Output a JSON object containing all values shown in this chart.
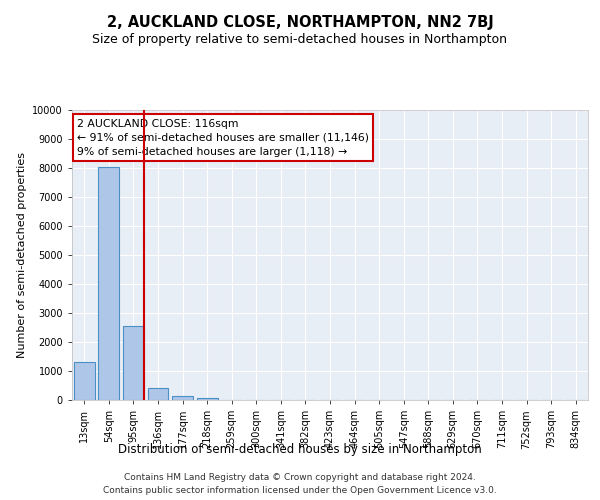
{
  "title": "2, AUCKLAND CLOSE, NORTHAMPTON, NN2 7BJ",
  "subtitle": "Size of property relative to semi-detached houses in Northampton",
  "xlabel_bottom": "Distribution of semi-detached houses by size in Northampton",
  "ylabel": "Number of semi-detached properties",
  "footer_line1": "Contains HM Land Registry data © Crown copyright and database right 2024.",
  "footer_line2": "Contains public sector information licensed under the Open Government Licence v3.0.",
  "categories": [
    "13sqm",
    "54sqm",
    "95sqm",
    "136sqm",
    "177sqm",
    "218sqm",
    "259sqm",
    "300sqm",
    "341sqm",
    "382sqm",
    "423sqm",
    "464sqm",
    "505sqm",
    "547sqm",
    "588sqm",
    "629sqm",
    "670sqm",
    "711sqm",
    "752sqm",
    "793sqm",
    "834sqm"
  ],
  "values": [
    1320,
    8050,
    2550,
    400,
    130,
    80,
    0,
    0,
    0,
    0,
    0,
    0,
    0,
    0,
    0,
    0,
    0,
    0,
    0,
    0,
    0
  ],
  "bar_color": "#aec6e8",
  "bar_edge_color": "#4a90c4",
  "bar_edge_width": 0.8,
  "red_line_x": 2.42,
  "annotation_text_line1": "2 AUCKLAND CLOSE: 116sqm",
  "annotation_text_line2": "← 91% of semi-detached houses are smaller (11,146)",
  "annotation_text_line3": "9% of semi-detached houses are larger (1,118) →",
  "annotation_box_color": "#cc0000",
  "ylim": [
    0,
    10000
  ],
  "yticks": [
    0,
    1000,
    2000,
    3000,
    4000,
    5000,
    6000,
    7000,
    8000,
    9000,
    10000
  ],
  "bg_color": "#e8eef6",
  "grid_color": "#ffffff",
  "title_fontsize": 10.5,
  "subtitle_fontsize": 9,
  "annotation_fontsize": 7.8,
  "ylabel_fontsize": 8,
  "xlabel_fontsize": 8.5,
  "tick_fontsize": 7,
  "footer_fontsize": 6.5
}
